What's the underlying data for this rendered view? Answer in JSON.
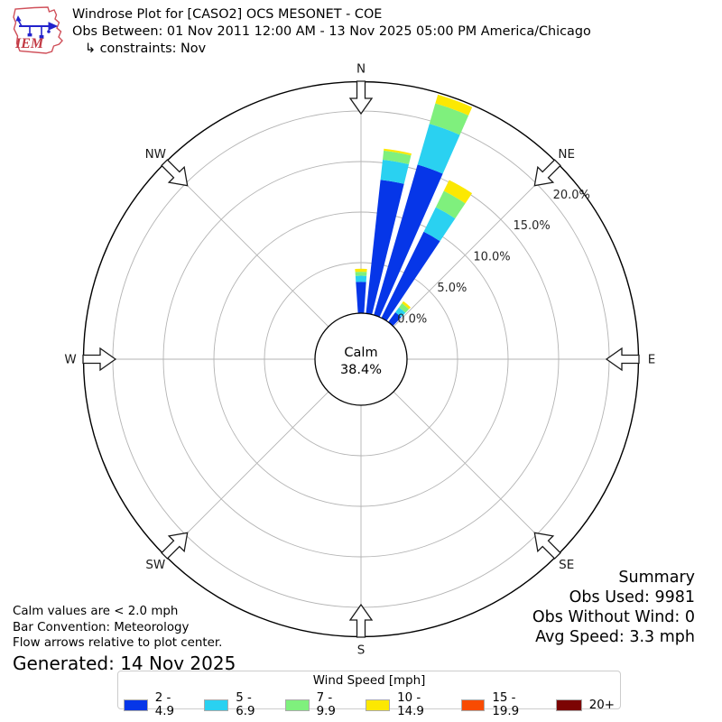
{
  "header": {
    "line1": "Windrose Plot for [CASO2] OCS MESONET - COE",
    "line2": "Obs Between: 01 Nov 2011 12:00 AM - 13 Nov 2025 05:00 PM America/Chicago",
    "line3": "↳ constraints: Nov"
  },
  "logo": {
    "text": "IEM"
  },
  "chart_data": {
    "type": "windrose-stacked-polar-bar",
    "title": "Windrose Plot for [CASO2] OCS MESONET - COE",
    "units": "mph",
    "direction_bins_deg": [
      0,
      10,
      20,
      30,
      40
    ],
    "bar_width_deg": 7.6,
    "series": [
      {
        "name": "2 - 4.9",
        "color": "#0636e8",
        "values": [
          3.1,
          13.3,
          15.5,
          9.5,
          1.2
        ]
      },
      {
        "name": "5 - 6.9",
        "color": "#2ad1f1",
        "values": [
          0.6,
          2.0,
          4.2,
          2.7,
          0.6
        ]
      },
      {
        "name": "7 - 9.9",
        "color": "#7ff07d",
        "values": [
          0.4,
          0.9,
          2.1,
          1.8,
          0.5
        ]
      },
      {
        "name": "10 - 14.9",
        "color": "#fce802",
        "values": [
          0.3,
          0.2,
          0.9,
          1.2,
          0.25
        ]
      },
      {
        "name": "15 - 19.9",
        "color": "#f84b02",
        "values": [
          0,
          0,
          0,
          0,
          0
        ]
      },
      {
        "name": "20+",
        "color": "#7c0403",
        "values": [
          0,
          0,
          0,
          0,
          0
        ]
      }
    ],
    "ring_values_pct": [
      0,
      5,
      10,
      15,
      20
    ],
    "ring_labels": [
      "0.0%",
      "5.0%",
      "10.0%",
      "15.0%",
      "20.0%"
    ],
    "axis_max_pct": 22.9,
    "compass_labels": [
      "N",
      "NE",
      "E",
      "SE",
      "S",
      "SW",
      "W",
      "NW"
    ],
    "calm": {
      "label": "Calm",
      "value": "38.4%"
    },
    "legend_position": "bottom",
    "grid": true
  },
  "legend": {
    "title": "Wind Speed [mph]"
  },
  "summary": {
    "title": "Summary",
    "obs_used": "Obs Used: 9981",
    "obs_without_wind": "Obs Without Wind: 0",
    "avg_speed": "Avg Speed: 3.3 mph"
  },
  "footnotes": {
    "line1": "Calm values are < 2.0 mph",
    "line2": "Bar Convention: Meteorology",
    "line3": "Flow arrows relative to plot center.",
    "generated": "Generated: 14 Nov 2025"
  }
}
